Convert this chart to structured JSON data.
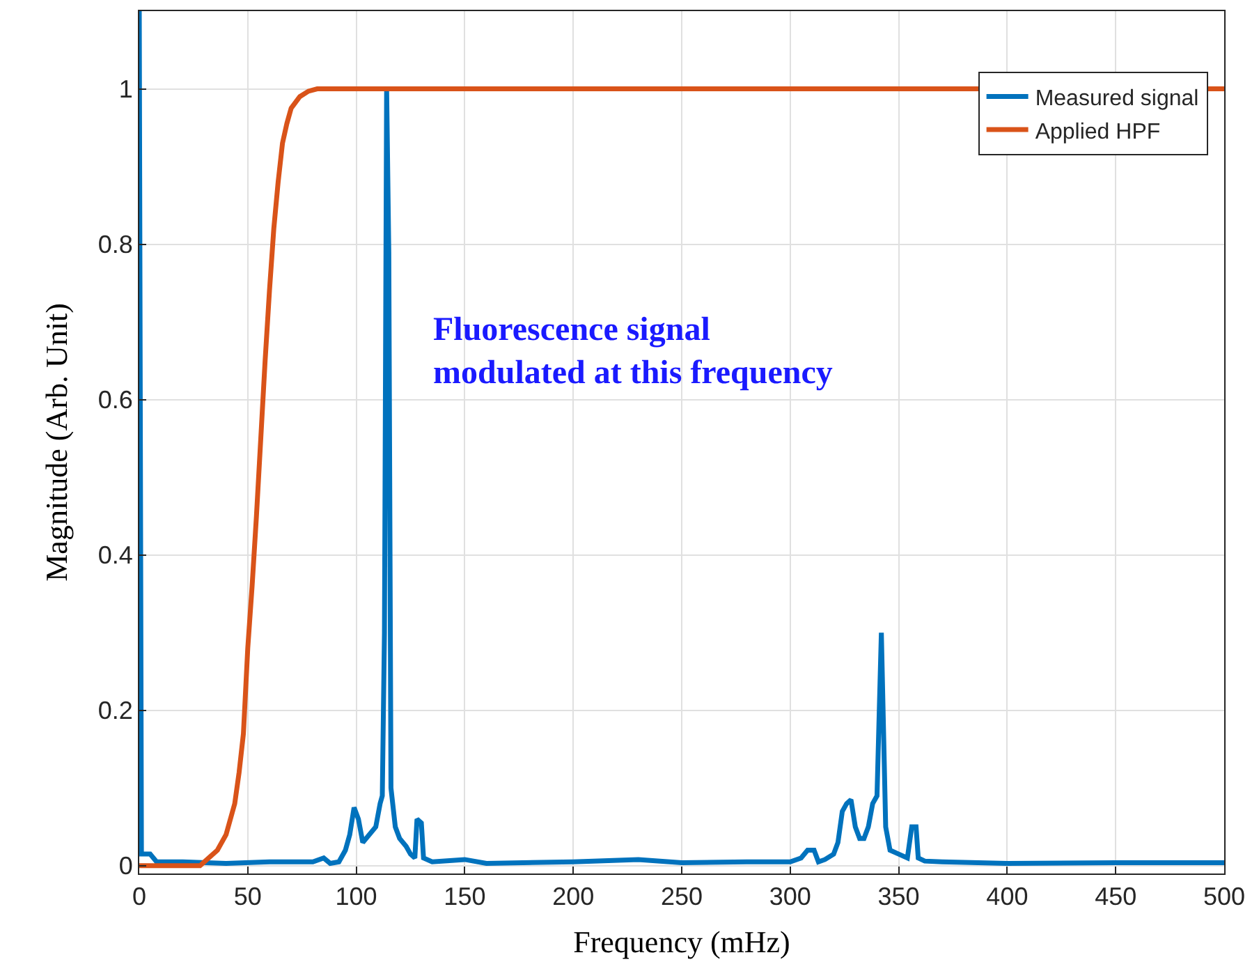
{
  "chart_data": {
    "type": "line",
    "xlabel": "Frequency (mHz)",
    "ylabel": "Magnitude (Arb. Unit)",
    "xlim": [
      0,
      500
    ],
    "xticks": [
      0,
      50,
      100,
      150,
      200,
      250,
      300,
      350,
      400,
      450,
      500
    ],
    "ylim": [
      -0.01,
      1.1
    ],
    "yticks": [
      0,
      0.2,
      0.4,
      0.6,
      0.8,
      1
    ],
    "grid": true,
    "legend": "top right",
    "marker": "none",
    "line_style": "solid",
    "annotations": [
      "Fluorescence signal\nmodulated at this frequency"
    ],
    "series": [
      {
        "name": "Measured signal",
        "color": "#0072bd",
        "x": [
          0,
          1,
          5,
          8,
          20,
          40,
          60,
          80,
          85,
          88,
          92,
          95,
          97,
          99,
          101,
          103,
          106,
          109,
          111,
          112,
          113,
          114,
          115,
          116,
          118,
          120,
          123,
          125,
          127,
          128,
          130,
          131,
          135,
          150,
          160,
          200,
          230,
          250,
          280,
          300,
          305,
          308,
          311,
          313,
          316,
          320,
          322,
          324,
          326,
          328,
          330,
          332,
          334,
          336,
          338,
          340,
          342,
          344,
          346,
          350,
          354,
          356,
          358,
          359,
          362,
          370,
          400,
          450,
          500
        ],
        "values": [
          1.1,
          0.015,
          0.015,
          0.005,
          0.005,
          0.003,
          0.005,
          0.005,
          0.01,
          0.003,
          0.005,
          0.02,
          0.04,
          0.075,
          0.06,
          0.03,
          0.04,
          0.05,
          0.08,
          0.09,
          0.3,
          1.0,
          0.79,
          0.1,
          0.05,
          0.035,
          0.025,
          0.015,
          0.01,
          0.06,
          0.055,
          0.01,
          0.005,
          0.008,
          0.003,
          0.005,
          0.008,
          0.004,
          0.005,
          0.005,
          0.01,
          0.02,
          0.02,
          0.005,
          0.008,
          0.015,
          0.03,
          0.07,
          0.08,
          0.085,
          0.05,
          0.035,
          0.035,
          0.05,
          0.08,
          0.09,
          0.3,
          0.05,
          0.02,
          0.015,
          0.01,
          0.05,
          0.05,
          0.01,
          0.006,
          0.005,
          0.003,
          0.004,
          0.004
        ]
      },
      {
        "name": "Applied HPF",
        "color": "#d95319",
        "x": [
          0,
          28,
          32,
          36,
          40,
          44,
          46,
          48,
          50,
          52,
          54,
          56,
          58,
          60,
          62,
          64,
          66,
          68,
          70,
          74,
          78,
          82,
          90,
          500
        ],
        "values": [
          0,
          0,
          0.01,
          0.02,
          0.04,
          0.08,
          0.12,
          0.17,
          0.28,
          0.36,
          0.45,
          0.55,
          0.65,
          0.74,
          0.82,
          0.88,
          0.93,
          0.955,
          0.975,
          0.99,
          0.997,
          1,
          1,
          1
        ]
      }
    ]
  }
}
